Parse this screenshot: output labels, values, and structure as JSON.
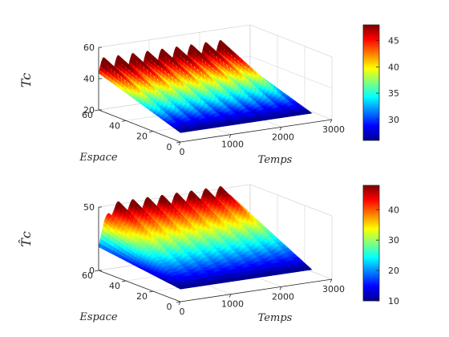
{
  "chart_data": [
    {
      "type": "surface",
      "title": "",
      "zlabel": "Tc",
      "xlabel": "Temps",
      "ylabel": "Espace",
      "xlim": [
        0,
        3000
      ],
      "ylim": [
        0,
        60
      ],
      "zlim": [
        20,
        60
      ],
      "xticks": [
        "0",
        "1000",
        "2000",
        "3000"
      ],
      "yticks": [
        "0",
        "20",
        "40",
        "60"
      ],
      "zticks": [
        "20",
        "40",
        "60"
      ],
      "colorbar": {
        "range": [
          26,
          48
        ],
        "ticks": [
          "30",
          "35",
          "40",
          "45"
        ]
      },
      "surface": {
        "value_at_space_0": 26,
        "value_at_space_60": 47,
        "oscillation_periods": 9,
        "oscillation_amplitude": 6
      }
    },
    {
      "type": "surface",
      "title": "",
      "zlabel": "T̂c",
      "xlabel": "Temps",
      "ylabel": "Espace",
      "xlim": [
        0,
        3000
      ],
      "ylim": [
        0,
        60
      ],
      "zlim": [
        0,
        50
      ],
      "xticks": [
        "0",
        "1000",
        "2000",
        "3000"
      ],
      "yticks": [
        "0",
        "20",
        "40",
        "60"
      ],
      "zticks": [
        "0",
        "50"
      ],
      "colorbar": {
        "range": [
          10,
          48
        ],
        "ticks": [
          "10",
          "20",
          "30",
          "40"
        ]
      },
      "surface": {
        "value_at_space_0": 10,
        "value_at_space_60": 47,
        "initial_rise_time": 200,
        "oscillation_periods": 9,
        "oscillation_amplitude": 5
      }
    }
  ]
}
